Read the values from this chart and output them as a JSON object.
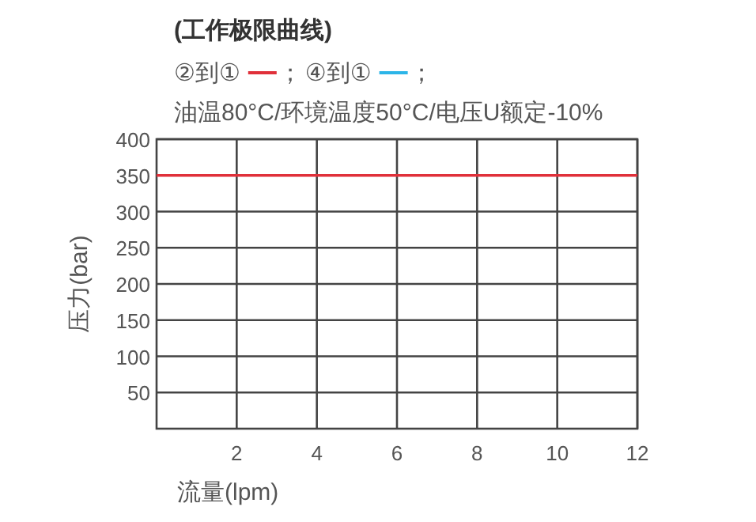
{
  "chart_data": {
    "type": "line",
    "title": "(工作极限曲线)",
    "subtitle": "油温80°C/环境温度50°C/电压U额定-10%",
    "xlabel": "流量(lpm)",
    "ylabel": "压力(bar)",
    "series": [
      {
        "name": "②到①",
        "color": "#e0303a",
        "values": [
          350,
          350
        ]
      },
      {
        "name": "④到①",
        "color": "#2cb5e8",
        "values": [
          null,
          null
        ]
      }
    ],
    "x": [
      0,
      12
    ],
    "annotations": [
      "；",
      "；"
    ],
    "xlim": [
      0,
      12
    ],
    "xticks": [
      2,
      4,
      6,
      8,
      10,
      12
    ],
    "ylim": [
      0,
      400
    ],
    "yticks": [
      50,
      100,
      150,
      200,
      250,
      300,
      350,
      400
    ],
    "grid": true,
    "legend": "top left",
    "marker": "none",
    "line_style": "solid"
  }
}
